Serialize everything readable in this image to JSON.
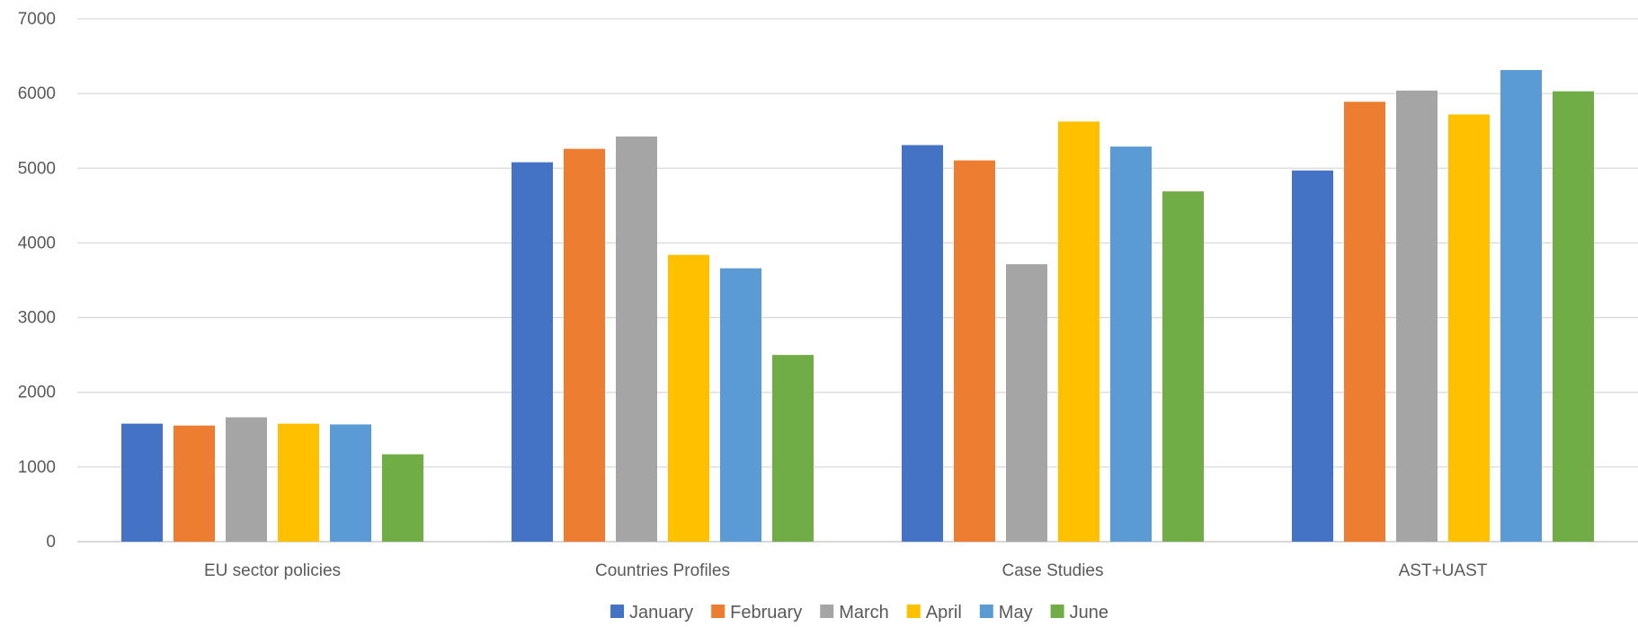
{
  "chart_data": {
    "type": "bar",
    "title": "",
    "xlabel": "",
    "ylabel": "",
    "categories": [
      "EU sector policies",
      "Countries Profiles",
      "Case Studies",
      "AST+UAST"
    ],
    "ylim": [
      0,
      7000
    ],
    "yticks": [
      0,
      1000,
      2000,
      3000,
      4000,
      5000,
      6000,
      7000
    ],
    "ytick_labels": [
      "0",
      "1000",
      "2000",
      "3000",
      "4000",
      "5000",
      "6000",
      "7000"
    ],
    "grid": true,
    "legend_position": "bottom",
    "series": [
      {
        "name": "January",
        "color": "#4472C4",
        "values": [
          1580,
          5080,
          5310,
          4970
        ]
      },
      {
        "name": "February",
        "color": "#ED7D31",
        "values": [
          1555,
          5260,
          5105,
          5890
        ]
      },
      {
        "name": "March",
        "color": "#A5A5A5",
        "values": [
          1665,
          5425,
          3715,
          6040
        ]
      },
      {
        "name": "April",
        "color": "#FFC000",
        "values": [
          1580,
          3840,
          5625,
          5720
        ]
      },
      {
        "name": "May",
        "color": "#5B9BD5",
        "values": [
          1570,
          3660,
          5290,
          6315
        ]
      },
      {
        "name": "June",
        "color": "#70AD47",
        "values": [
          1170,
          2500,
          4690,
          6030
        ]
      }
    ]
  }
}
